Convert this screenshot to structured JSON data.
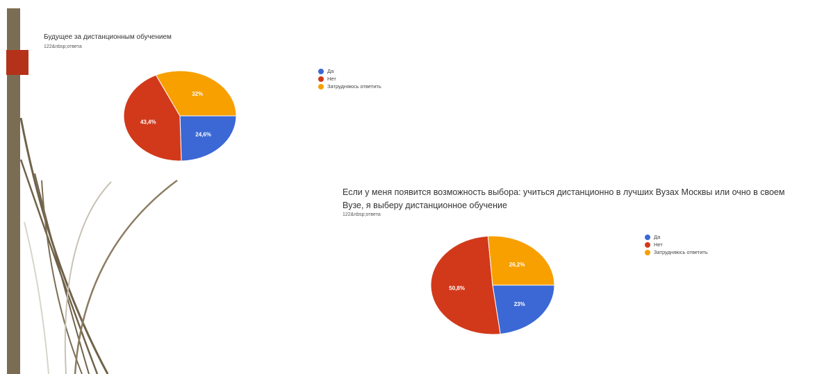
{
  "colors": {
    "yes": "#3b68d4",
    "no": "#d2391a",
    "unsure": "#f7a000",
    "left_bar": "#7b6d54",
    "accent": "#b5321a"
  },
  "chart_data": [
    {
      "type": "pie",
      "title": "Будущее за дистанционным обучением",
      "subtitle": "122&nbsp;ответа",
      "legend": [
        "Да",
        "Нет",
        "Затрудняюсь ответить"
      ],
      "labels": [
        "Да",
        "Нет",
        "Затрудняюсь ответить"
      ],
      "values": [
        24.6,
        43.4,
        32
      ],
      "value_labels": [
        "24,6%",
        "43,4%",
        "32%"
      ],
      "legend_position": "right"
    },
    {
      "type": "pie",
      "title": "Если у меня появится возможность выбора: учиться дистанционно в лучших Вузах Москвы или очно в своем Вузе, я выберу дистанционное обучение",
      "subtitle": "122&nbsp;ответа",
      "legend": [
        "Да",
        "Нет",
        "Затрудняюсь ответить"
      ],
      "labels": [
        "Да",
        "Нет",
        "Затрудняюсь ответить"
      ],
      "values": [
        23,
        50.8,
        26.2
      ],
      "value_labels": [
        "23%",
        "50,8%",
        "26,2%"
      ],
      "legend_position": "right"
    }
  ]
}
